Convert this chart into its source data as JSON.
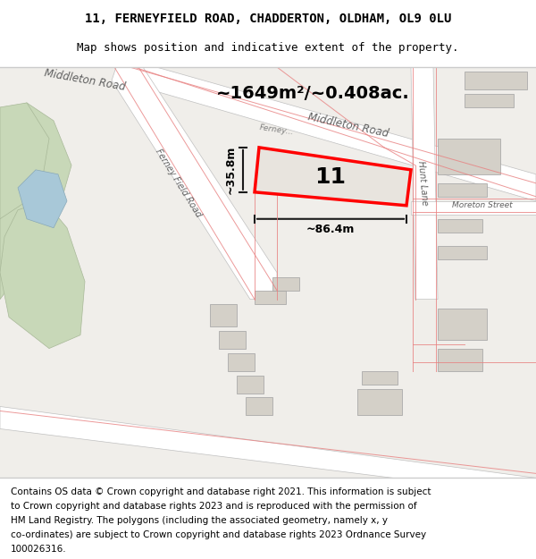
{
  "title_line1": "11, FERNEYFIELD ROAD, CHADDERTON, OLDHAM, OL9 0LU",
  "title_line2": "Map shows position and indicative extent of the property.",
  "footer_text": "Contains OS data © Crown copyright and database right 2021. This information is subject to Crown copyright and database rights 2023 and is reproduced with the permission of HM Land Registry. The polygons (including the associated geometry, namely x, y co-ordinates) are subject to Crown copyright and database rights 2023 Ordnance Survey 100026316.",
  "area_label": "~1649m²/~0.408ac.",
  "width_label": "~86.4m",
  "height_label": "~35.8m",
  "plot_number": "11",
  "bg_color": "#f0eeea",
  "road_color": "#ffffff",
  "building_color": "#d4d0c8",
  "green_color": "#c8d8b8",
  "water_color": "#a8c8d8",
  "red_outline_color": "#ff0000",
  "road_line_color": "#e88080",
  "dim_line_color": "#1a1a1a",
  "title_fontsize": 10,
  "subtitle_fontsize": 9,
  "footer_fontsize": 7.5
}
